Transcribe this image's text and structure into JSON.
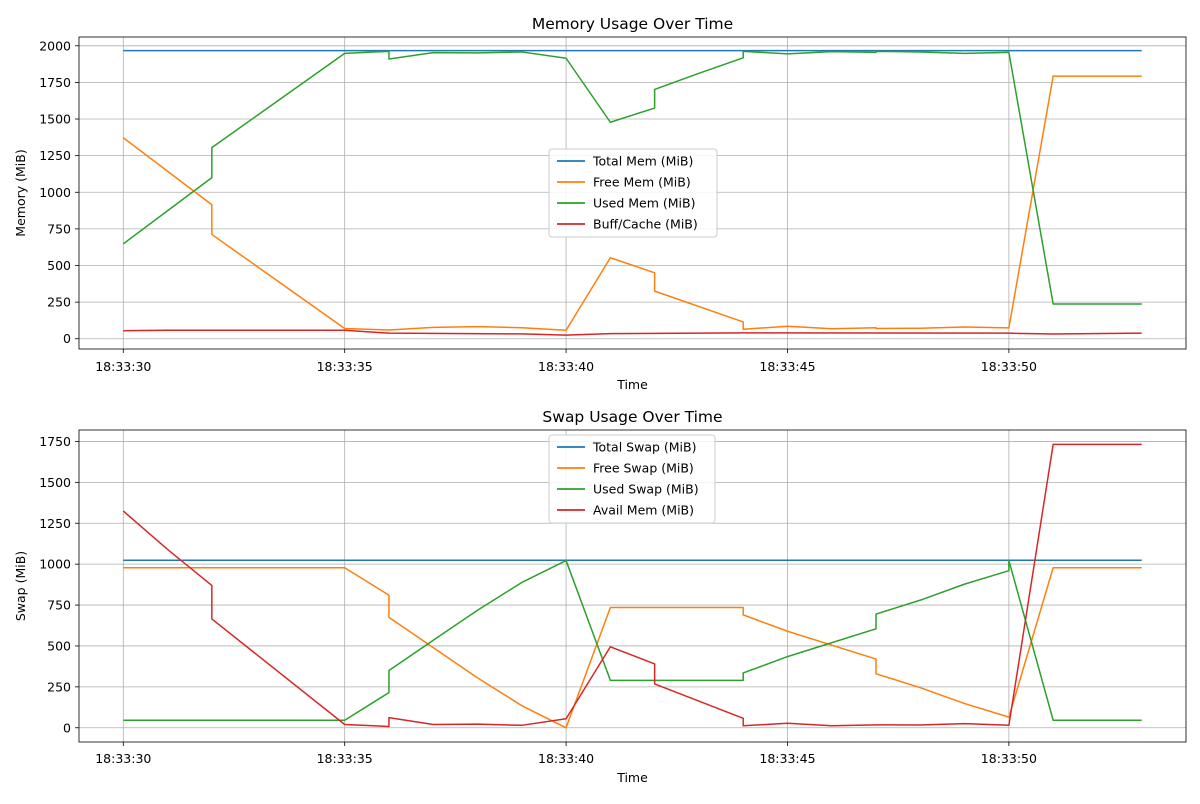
{
  "chart_data": [
    {
      "type": "line",
      "title": "Memory Usage Over Time",
      "xlabel": "Time",
      "ylabel": "Memory (MiB)",
      "grid": true,
      "legend_position": "center",
      "xlim": [
        "18:33:29.0",
        "18:33:54.0"
      ],
      "ylim": [
        -70,
        2060
      ],
      "x_ticks": [
        "18:33:30",
        "18:33:35",
        "18:33:40",
        "18:33:45",
        "18:33:50"
      ],
      "y_ticks": [
        0,
        250,
        500,
        750,
        1000,
        1250,
        1500,
        1750,
        2000
      ],
      "series": [
        {
          "name": "Total Mem (MiB)",
          "color": "#1f77b4",
          "x": [
            "18:33:30",
            "18:33:53"
          ],
          "values": [
            1967,
            1967
          ]
        },
        {
          "name": "Free Mem (MiB)",
          "color": "#ff7f0e",
          "x": [
            "18:33:30",
            "18:33:32",
            "18:33:32",
            "18:33:35",
            "18:33:36",
            "18:33:37",
            "18:33:38",
            "18:33:39",
            "18:33:40",
            "18:33:41",
            "18:33:42",
            "18:33:42",
            "18:33:44",
            "18:33:44",
            "18:33:45",
            "18:33:46",
            "18:33:47",
            "18:33:47",
            "18:33:48",
            "18:33:49",
            "18:33:50",
            "18:33:51",
            "18:33:53"
          ],
          "values": [
            1372,
            915,
            712,
            70,
            60,
            78,
            83,
            75,
            58,
            553,
            450,
            325,
            115,
            65,
            85,
            68,
            75,
            70,
            72,
            80,
            74,
            1793,
            1793
          ]
        },
        {
          "name": "Used Mem (MiB)",
          "color": "#2ca02c",
          "x": [
            "18:33:30",
            "18:33:32",
            "18:33:32",
            "18:33:35",
            "18:33:36",
            "18:33:36",
            "18:33:37",
            "18:33:38",
            "18:33:39",
            "18:33:40",
            "18:33:41",
            "18:33:42",
            "18:33:42",
            "18:33:43",
            "18:33:44",
            "18:33:44",
            "18:33:45",
            "18:33:46",
            "18:33:47",
            "18:33:47",
            "18:33:48",
            "18:33:49",
            "18:33:50",
            "18:33:51",
            "18:33:53"
          ],
          "values": [
            648,
            1100,
            1305,
            1948,
            1962,
            1910,
            1953,
            1952,
            1958,
            1915,
            1478,
            1575,
            1702,
            1812,
            1918,
            1962,
            1945,
            1960,
            1955,
            1962,
            1958,
            1948,
            1955,
            237,
            237
          ]
        },
        {
          "name": "Buff/Cache (MiB)",
          "color": "#d62728",
          "x": [
            "18:33:30",
            "18:33:31",
            "18:33:35",
            "18:33:36",
            "18:33:39",
            "18:33:40",
            "18:33:41",
            "18:33:44",
            "18:33:50",
            "18:33:51",
            "18:33:53"
          ],
          "values": [
            55,
            58,
            58,
            38,
            33,
            25,
            35,
            40,
            38,
            32,
            38
          ]
        }
      ]
    },
    {
      "type": "line",
      "title": "Swap Usage Over Time",
      "xlabel": "Time",
      "ylabel": "Swap (MiB)",
      "grid": true,
      "legend_position": "upper center",
      "xlim": [
        "18:33:29.0",
        "18:33:54.0"
      ],
      "ylim": [
        -87,
        1820
      ],
      "x_ticks": [
        "18:33:30",
        "18:33:35",
        "18:33:40",
        "18:33:45",
        "18:33:50"
      ],
      "y_ticks": [
        0,
        250,
        500,
        750,
        1000,
        1250,
        1500,
        1750
      ],
      "series": [
        {
          "name": "Total Swap (MiB)",
          "color": "#1f77b4",
          "x": [
            "18:33:30",
            "18:33:53"
          ],
          "values": [
            1024,
            1024
          ]
        },
        {
          "name": "Free Swap (MiB)",
          "color": "#ff7f0e",
          "x": [
            "18:33:30",
            "18:33:35",
            "18:33:36",
            "18:33:36",
            "18:33:37",
            "18:33:38",
            "18:33:39",
            "18:33:40",
            "18:33:41",
            "18:33:44",
            "18:33:44",
            "18:33:45",
            "18:33:47",
            "18:33:47",
            "18:33:48",
            "18:33:49",
            "18:33:50",
            "18:33:51",
            "18:33:53"
          ],
          "values": [
            978,
            978,
            810,
            675,
            490,
            305,
            135,
            0,
            735,
            735,
            690,
            590,
            420,
            330,
            245,
            148,
            65,
            978,
            978
          ]
        },
        {
          "name": "Used Swap (MiB)",
          "color": "#2ca02c",
          "x": [
            "18:33:30",
            "18:33:35",
            "18:33:36",
            "18:33:36",
            "18:33:37",
            "18:33:38",
            "18:33:39",
            "18:33:40",
            "18:33:41",
            "18:33:44",
            "18:33:44",
            "18:33:45",
            "18:33:47",
            "18:33:47",
            "18:33:48",
            "18:33:49",
            "18:33:50",
            "18:33:50",
            "18:33:51",
            "18:33:53"
          ],
          "values": [
            46,
            46,
            215,
            350,
            535,
            718,
            888,
            1022,
            290,
            290,
            335,
            435,
            605,
            695,
            780,
            878,
            960,
            1022,
            46,
            46
          ]
        },
        {
          "name": "Avail Mem (MiB)",
          "color": "#d62728",
          "x": [
            "18:33:30",
            "18:33:31",
            "18:33:32",
            "18:33:32",
            "18:33:35",
            "18:33:36",
            "18:33:36",
            "18:33:37",
            "18:33:38",
            "18:33:39",
            "18:33:40",
            "18:33:41",
            "18:33:42",
            "18:33:42",
            "18:33:44",
            "18:33:44",
            "18:33:45",
            "18:33:46",
            "18:33:47",
            "18:33:48",
            "18:33:49",
            "18:33:50",
            "18:33:51",
            "18:33:53"
          ],
          "values": [
            1325,
            1090,
            870,
            665,
            20,
            8,
            62,
            20,
            22,
            15,
            55,
            495,
            390,
            268,
            58,
            12,
            28,
            12,
            18,
            17,
            25,
            15,
            1732,
            1732
          ]
        }
      ]
    }
  ]
}
